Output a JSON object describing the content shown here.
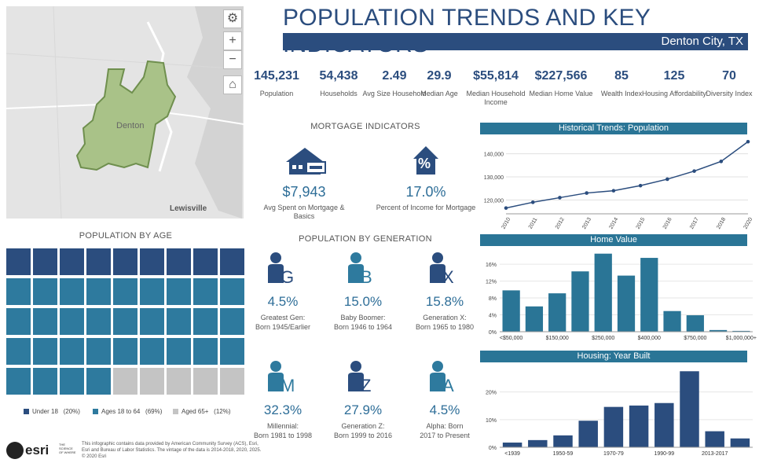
{
  "header": {
    "title": "POPULATION TRENDS AND KEY INDICATORS",
    "location": "Denton City, TX"
  },
  "map": {
    "city_label": "Denton",
    "town_label": "Lewisville",
    "zoom_in": "+",
    "zoom_out": "−"
  },
  "kpis": [
    {
      "value": "145,231",
      "label": "Population"
    },
    {
      "value": "54,438",
      "label": "Households"
    },
    {
      "value": "2.49",
      "label": "Avg Size Household"
    },
    {
      "value": "29.9",
      "label": "Median Age"
    },
    {
      "value": "$55,814",
      "label": "Median Household Income"
    },
    {
      "value": "$227,566",
      "label": "Median Home Value"
    },
    {
      "value": "85",
      "label": "Wealth Index"
    },
    {
      "value": "125",
      "label": "Housing Affordability"
    },
    {
      "value": "70",
      "label": "Diversity Index"
    }
  ],
  "mortgage": {
    "title": "MORTGAGE INDICATORS",
    "items": [
      {
        "value": "$7,943",
        "label": "Avg Spent on Mortgage & Basics"
      },
      {
        "value": "17.0%",
        "label": "Percent of Income for Mortgage",
        "icon_text": "%"
      }
    ]
  },
  "age": {
    "title": "POPULATION BY AGE",
    "legend": [
      {
        "label": "Under 18",
        "pct": "(20%)",
        "color": "#2b4d7e"
      },
      {
        "label": "Ages 18 to 64",
        "pct": "(69%)",
        "color": "#2e7a9e"
      },
      {
        "label": "Aged 65+",
        "pct": "(12%)",
        "color": "#c4c4c4"
      }
    ]
  },
  "generation": {
    "title": "POPULATION BY GENERATION",
    "items": [
      {
        "letter": "G",
        "value": "4.5%",
        "line1": "Greatest Gen:",
        "line2": "Born 1945/Earlier",
        "color": "#2b4d7e"
      },
      {
        "letter": "B",
        "value": "15.0%",
        "line1": "Baby Boomer:",
        "line2": "Born 1946 to 1964",
        "color": "#2e7a9e"
      },
      {
        "letter": "X",
        "value": "15.8%",
        "line1": "Generation X:",
        "line2": "Born 1965 to 1980",
        "color": "#2b4d7e"
      },
      {
        "letter": "M",
        "value": "32.3%",
        "line1": "Millennial:",
        "line2": "Born 1981 to 1998",
        "color": "#2e7a9e"
      },
      {
        "letter": "Z",
        "value": "27.9%",
        "line1": "Generation Z:",
        "line2": "Born 1999 to 2016",
        "color": "#2b4d7e"
      },
      {
        "letter": "A",
        "value": "4.5%",
        "line1": "Alpha: Born",
        "line2": "2017 to Present",
        "color": "#2e7a9e"
      }
    ]
  },
  "footer": {
    "logo": "esri",
    "tagline": "THE SCIENCE OF WHERE",
    "text1": "This infographic contains data provided by American Community Survey (ACS), Esri,",
    "text2": "Esri and Bureau of Labor Statistics. The vintage of the data is 2014-2018, 2020, 2025.",
    "text3": "© 2020 Esri"
  },
  "colors": {
    "navy": "#2b4d7e",
    "teal": "#2e7a9e",
    "grey": "#c4c4c4",
    "map_green": "#8aa86b"
  },
  "chart_data": [
    {
      "type": "line",
      "title": "Historical Trends: Population",
      "x": [
        "2010",
        "2011",
        "2012",
        "2013",
        "2014",
        "2015",
        "2016",
        "2017",
        "2018",
        "2020"
      ],
      "y": [
        116500,
        119000,
        121000,
        123000,
        124000,
        126200,
        129000,
        132500,
        136700,
        145231
      ],
      "ylim": [
        114000,
        146000
      ],
      "yticks": [
        "120,000",
        "130,000",
        "140,000"
      ],
      "ytick_values": [
        120000,
        130000,
        140000
      ]
    },
    {
      "type": "bar",
      "title": "Home Value",
      "categories": [
        "<$50,000",
        "",
        "$150,000",
        "",
        "$250,000",
        "",
        "$400,000",
        "",
        "$750,000",
        "",
        "$1,000,000+"
      ],
      "values": [
        9.8,
        6.0,
        9.1,
        14.3,
        18.5,
        13.3,
        17.5,
        4.9,
        3.9,
        0.4,
        0.2
      ],
      "ylim": [
        0,
        19
      ],
      "yticks": [
        "0%",
        "4%",
        "8%",
        "12%",
        "16%"
      ],
      "ytick_values": [
        0,
        4,
        8,
        12,
        16
      ]
    },
    {
      "type": "bar",
      "title": "Housing: Year Built",
      "categories": [
        "<1939",
        "",
        "1950-59",
        "",
        "1970-79",
        "",
        "1990-99",
        "",
        "2013-2017",
        ""
      ],
      "values": [
        1.7,
        2.6,
        4.3,
        9.6,
        14.6,
        15.1,
        16.0,
        27.5,
        5.8,
        3.2
      ],
      "ylim": [
        0,
        29
      ],
      "yticks": [
        "0%",
        "10%",
        "20%"
      ],
      "ytick_values": [
        0,
        10,
        20
      ]
    }
  ]
}
